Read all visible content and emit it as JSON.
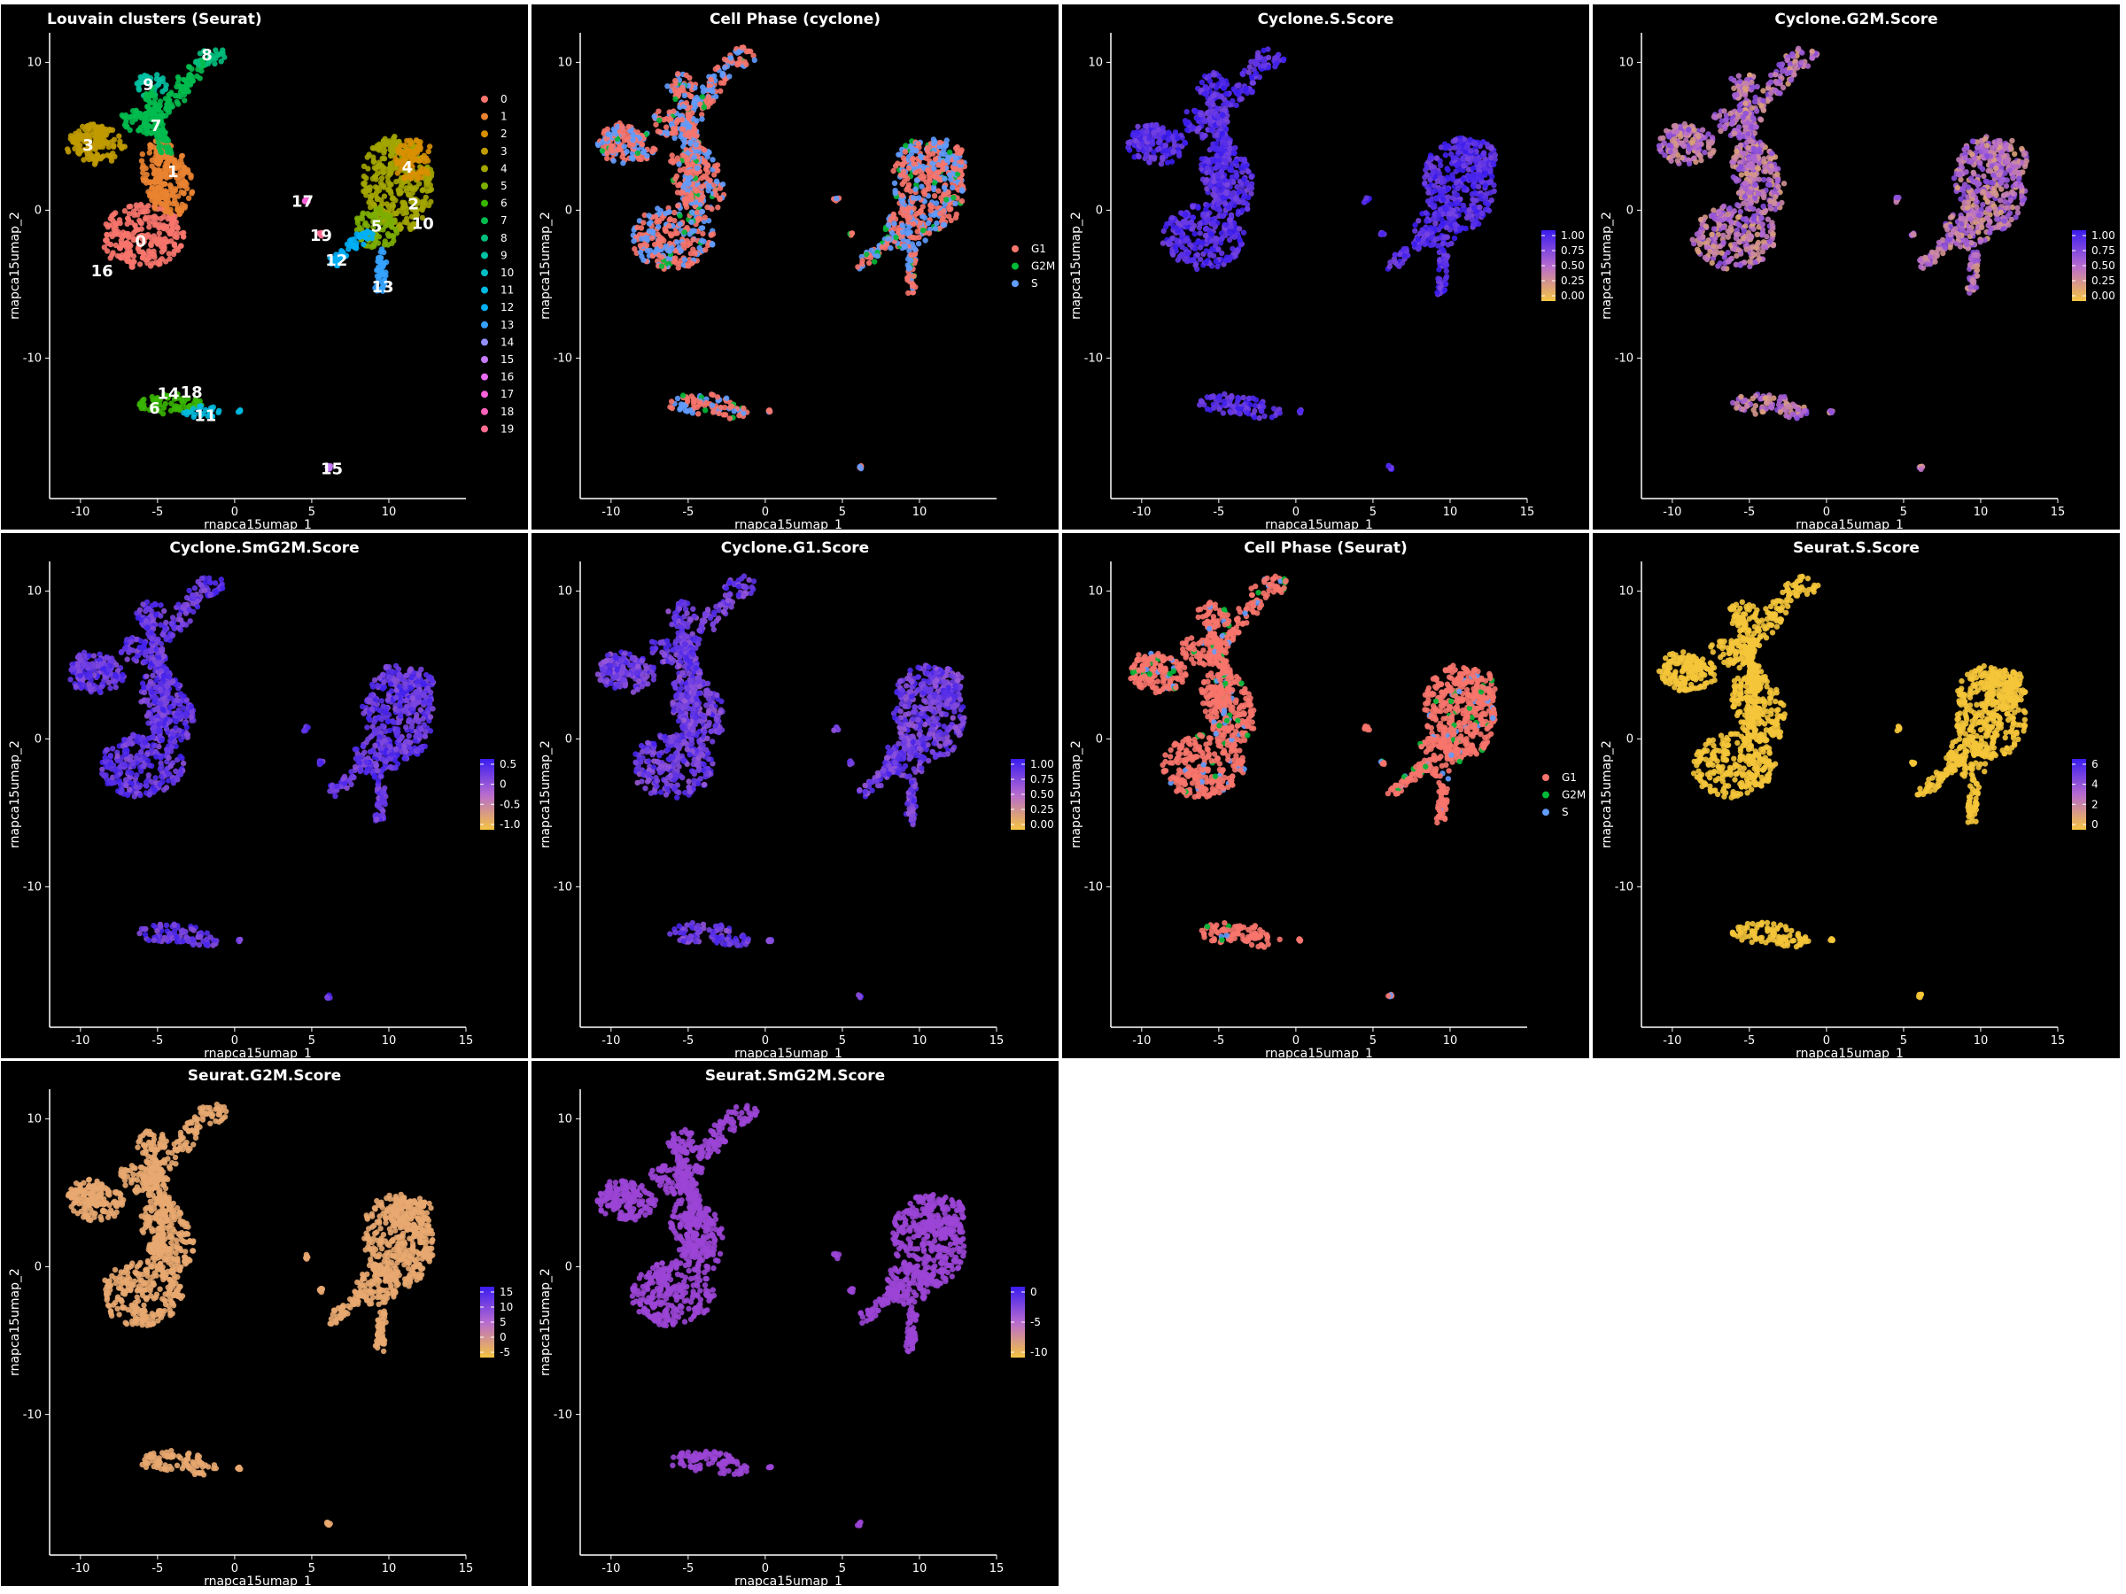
{
  "figure": {
    "colors": {
      "background": "#000000",
      "page": "#ffffff",
      "text": "#ffffff",
      "axis": "#ffffff",
      "gradient_low": "#f5c542",
      "gradient_mid": "#b76bd0",
      "gradient_high": "#3a1cf0"
    }
  },
  "chart_data": [
    {
      "type": "scatter",
      "style": "clusters",
      "title": "Louvain clusters (Seurat)",
      "xlabel": "rnapca15umap_1",
      "ylabel": "rnapca15umap_2",
      "xlim": [
        -12,
        15
      ],
      "ylim": [
        -19.5,
        12
      ],
      "xticks": [
        "-10",
        "-5",
        "0",
        "5",
        "10"
      ],
      "yticks": [
        "10",
        "0",
        "-10"
      ],
      "legend": [
        {
          "label": "0",
          "color": "#f8766d"
        },
        {
          "label": "1",
          "color": "#ea8331"
        },
        {
          "label": "2",
          "color": "#d89000"
        },
        {
          "label": "3",
          "color": "#c09b00"
        },
        {
          "label": "4",
          "color": "#a3a500"
        },
        {
          "label": "5",
          "color": "#7cae00"
        },
        {
          "label": "6",
          "color": "#39b600"
        },
        {
          "label": "7",
          "color": "#00bb4e"
        },
        {
          "label": "8",
          "color": "#00bf7d"
        },
        {
          "label": "9",
          "color": "#00c1a3"
        },
        {
          "label": "10",
          "color": "#00bfc4"
        },
        {
          "label": "11",
          "color": "#00bae0"
        },
        {
          "label": "12",
          "color": "#00b0f6"
        },
        {
          "label": "13",
          "color": "#35a2ff"
        },
        {
          "label": "14",
          "color": "#9590ff"
        },
        {
          "label": "15",
          "color": "#c77cff"
        },
        {
          "label": "16",
          "color": "#e76bf3"
        },
        {
          "label": "17",
          "color": "#fa62db"
        },
        {
          "label": "18",
          "color": "#ff62bc"
        },
        {
          "label": "19",
          "color": "#ff6c91"
        }
      ],
      "cluster_labels": [
        {
          "label": "0",
          "x": -6.1,
          "y": -2.1
        },
        {
          "label": "1",
          "x": -4.0,
          "y": 2.6
        },
        {
          "label": "2",
          "x": 11.6,
          "y": 0.4
        },
        {
          "label": "3",
          "x": -9.5,
          "y": 4.4
        },
        {
          "label": "4",
          "x": 11.2,
          "y": 2.9
        },
        {
          "label": "5",
          "x": 9.2,
          "y": -1.1
        },
        {
          "label": "6",
          "x": -5.2,
          "y": -13.4
        },
        {
          "label": "7",
          "x": -5.1,
          "y": 5.7
        },
        {
          "label": "8",
          "x": -1.8,
          "y": 10.5
        },
        {
          "label": "9",
          "x": -5.6,
          "y": 8.5
        },
        {
          "label": "10",
          "x": 12.2,
          "y": -0.9
        },
        {
          "label": "11",
          "x": -1.9,
          "y": -13.9
        },
        {
          "label": "12",
          "x": 6.6,
          "y": -3.4
        },
        {
          "label": "13",
          "x": 9.6,
          "y": -5.2
        },
        {
          "label": "14",
          "x": -4.3,
          "y": -12.4
        },
        {
          "label": "15",
          "x": 6.3,
          "y": -17.5
        },
        {
          "label": "16",
          "x": -8.6,
          "y": -4.1
        },
        {
          "label": "17",
          "x": 4.4,
          "y": 0.6
        },
        {
          "label": "18",
          "x": -2.8,
          "y": -12.3
        },
        {
          "label": "19",
          "x": 5.6,
          "y": -1.7
        }
      ]
    },
    {
      "type": "scatter",
      "style": "phase",
      "title": "Cell Phase (cyclone)",
      "xlabel": "rnapca15umap_1",
      "ylabel": "rnapca15umap_2",
      "xlim": [
        -12,
        15
      ],
      "ylim": [
        -19.5,
        12
      ],
      "xticks": [
        "-10",
        "-5",
        "0",
        "5",
        "10"
      ],
      "yticks": [
        "10",
        "0",
        "-10"
      ],
      "base_color": "#f8766d",
      "legend": [
        {
          "label": "G1",
          "color": "#f8766d"
        },
        {
          "label": "G2M",
          "color": "#00ba38"
        },
        {
          "label": "S",
          "color": "#619cff"
        }
      ],
      "mix": [
        0.55,
        0.07,
        0.38
      ]
    },
    {
      "type": "scatter",
      "style": "gradient",
      "title": "Cyclone.S.Score",
      "xlabel": "rnapca15umap_1",
      "ylabel": "rnapca15umap_2",
      "xlim": [
        -12,
        15
      ],
      "ylim": [
        -19.5,
        12
      ],
      "xticks": [
        "-10",
        "-5",
        "0",
        "5",
        "10",
        "15"
      ],
      "yticks": [
        "10",
        "0",
        "-10"
      ],
      "colorbar": [
        "1.00",
        "0.75",
        "0.50",
        "0.25",
        "0.00"
      ],
      "mean_level": 0.88
    },
    {
      "type": "scatter",
      "style": "gradient",
      "title": "Cyclone.G2M.Score",
      "xlabel": "rnapca15umap_1",
      "ylabel": "rnapca15umap_2",
      "xlim": [
        -12,
        15
      ],
      "ylim": [
        -19.5,
        12
      ],
      "xticks": [
        "-10",
        "-5",
        "0",
        "5",
        "10",
        "15"
      ],
      "yticks": [
        "10",
        "0",
        "-10"
      ],
      "colorbar": [
        "1.00",
        "0.75",
        "0.50",
        "0.25",
        "0.00"
      ],
      "mean_level": 0.45
    },
    {
      "type": "scatter",
      "style": "gradient",
      "title": "Cyclone.SmG2M.Score",
      "xlabel": "rnapca15umap_1",
      "ylabel": "rnapca15umap_2",
      "xlim": [
        -12,
        15
      ],
      "ylim": [
        -19.5,
        12
      ],
      "xticks": [
        "-10",
        "-5",
        "0",
        "5",
        "10",
        "15"
      ],
      "yticks": [
        "10",
        "0",
        "-10"
      ],
      "colorbar": [
        "0.5",
        "0",
        "-0.5",
        "-1.0"
      ],
      "mean_level": 0.82
    },
    {
      "type": "scatter",
      "style": "gradient",
      "title": "Cyclone.G1.Score",
      "xlabel": "rnapca15umap_1",
      "ylabel": "rnapca15umap_2",
      "xlim": [
        -12,
        15
      ],
      "ylim": [
        -19.5,
        12
      ],
      "xticks": [
        "-10",
        "-5",
        "0",
        "5",
        "10",
        "15"
      ],
      "yticks": [
        "10",
        "0",
        "-10"
      ],
      "colorbar": [
        "1.00",
        "0.75",
        "0.50",
        "0.25",
        "0.00"
      ],
      "mean_level": 0.78
    },
    {
      "type": "scatter",
      "style": "phase",
      "title": "Cell Phase (Seurat)",
      "xlabel": "rnapca15umap_1",
      "ylabel": "rnapca15umap_2",
      "xlim": [
        -12,
        15
      ],
      "ylim": [
        -19.5,
        12
      ],
      "xticks": [
        "-10",
        "-5",
        "0",
        "5",
        "10"
      ],
      "yticks": [
        "10",
        "0",
        "-10"
      ],
      "base_color": "#f8766d",
      "legend": [
        {
          "label": "G1",
          "color": "#f8766d"
        },
        {
          "label": "G2M",
          "color": "#00ba38"
        },
        {
          "label": "S",
          "color": "#619cff"
        }
      ],
      "mix": [
        0.9,
        0.04,
        0.06
      ]
    },
    {
      "type": "scatter",
      "style": "solid",
      "title": "Seurat.S.Score",
      "xlabel": "rnapca15umap_1",
      "ylabel": "rnapca15umap_2",
      "xlim": [
        -12,
        15
      ],
      "ylim": [
        -19.5,
        12
      ],
      "xticks": [
        "-10",
        "-5",
        "0",
        "5",
        "10",
        "15"
      ],
      "yticks": [
        "10",
        "0",
        "-10"
      ],
      "colorbar": [
        "6",
        "4",
        "2",
        "0"
      ],
      "point_color": "#f5c53a"
    },
    {
      "type": "scatter",
      "style": "solid",
      "title": "Seurat.G2M.Score",
      "xlabel": "rnapca15umap_1",
      "ylabel": "rnapca15umap_2",
      "xlim": [
        -12,
        15
      ],
      "ylim": [
        -19.5,
        12
      ],
      "xticks": [
        "-10",
        "-5",
        "0",
        "5",
        "10",
        "15"
      ],
      "yticks": [
        "10",
        "0",
        "-10"
      ],
      "colorbar": [
        "15",
        "10",
        "5",
        "0",
        "-5"
      ],
      "point_color": "#e8a870"
    },
    {
      "type": "scatter",
      "style": "solid",
      "title": "Seurat.SmG2M.Score",
      "xlabel": "rnapca15umap_1",
      "ylabel": "rnapca15umap_2",
      "xlim": [
        -12,
        15
      ],
      "ylim": [
        -19.5,
        12
      ],
      "xticks": [
        "-10",
        "-5",
        "0",
        "5",
        "10",
        "15"
      ],
      "yticks": [
        "10",
        "0",
        "-10"
      ],
      "colorbar": [
        "0",
        "-5",
        "-10"
      ],
      "point_color": "#9b45d6"
    }
  ]
}
